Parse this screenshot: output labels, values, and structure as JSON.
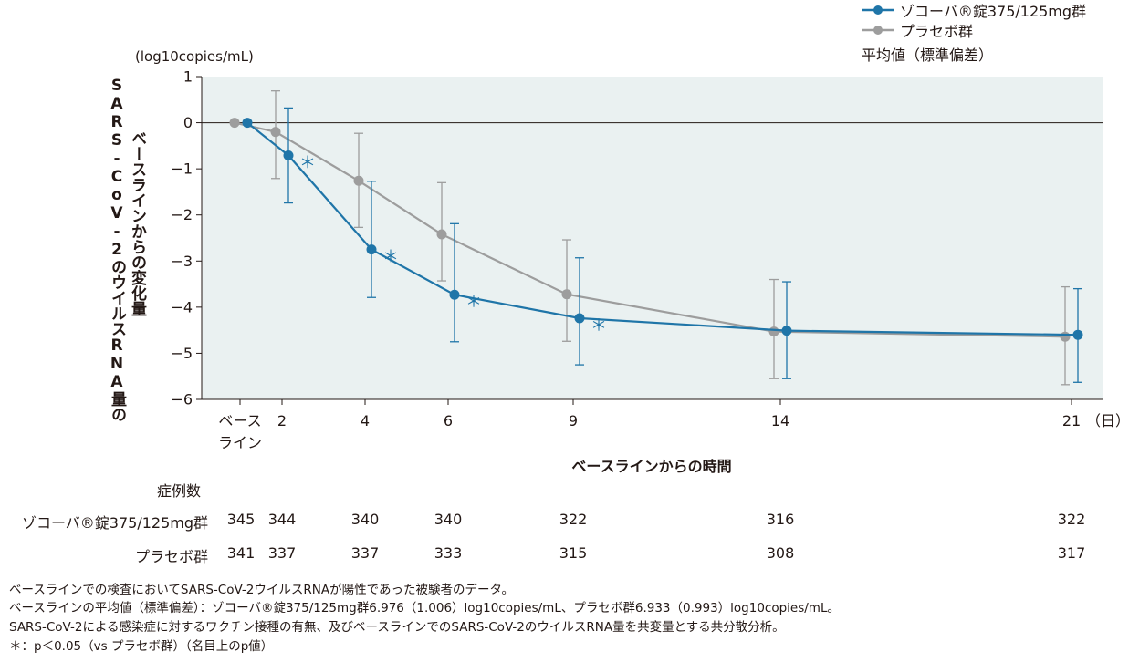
{
  "legend": {
    "series_1": "ゾコーバ®錠375/125mg群",
    "series_2": "プラセボ群",
    "statistic": "平均値（標準偏差）"
  },
  "y_axis": {
    "unit": "(log10copies/mL)",
    "title_line_1": "ベースラインからの変化量",
    "title_line_2": "SARS-CoV-2のウイルスRNA量の"
  },
  "x_axis": {
    "title": "ベースラインからの時間",
    "unit_suffix": "（日）",
    "baseline_label_1": "ベース",
    "baseline_label_2": "ライン"
  },
  "case_table": {
    "header": "症例数",
    "rows": [
      {
        "label": "ゾコーバ®錠375/125mg群",
        "values": [
          "345",
          "344",
          "340",
          "340",
          "322",
          "316",
          "322"
        ]
      },
      {
        "label": "プラセボ群",
        "values": [
          "341",
          "337",
          "337",
          "333",
          "315",
          "308",
          "317"
        ]
      }
    ]
  },
  "notes": [
    "ベースラインでの検査においてSARS-CoV-2ウイルスRNAが陽性であった被験者のデータ。",
    "ベースラインの平均値（標準偏差）：ゾコーバ®錠375/125mg群6.976（1.006）log10copies/mL、プラセボ群6.933（0.993）log10copies/mL。",
    "SARS-CoV-2による感染症に対するワクチン接種の有無、及びベースラインでのSARS-CoV-2のウイルスRNA量を共変量とする共分散分析。",
    "＊：p＜0.05（vs プラセボ群）（名目上のp値）"
  ],
  "significance_marker": "＊",
  "chart_data": {
    "type": "line",
    "x": [
      0,
      2,
      4,
      6,
      9,
      14,
      21
    ],
    "x_tick_labels": [
      "ベースライン",
      "2",
      "4",
      "6",
      "9",
      "14",
      "21"
    ],
    "ylim": [
      -6,
      1
    ],
    "y_ticks": [
      1,
      0,
      -1,
      -2,
      -3,
      -4,
      -5,
      -6
    ],
    "grid": false,
    "zero_line": true,
    "legend_position": "top-right",
    "series": [
      {
        "name": "ゾコーバ®錠375/125mg群",
        "color": "#1f75a8",
        "mean": [
          0,
          -0.71,
          -2.75,
          -3.73,
          -4.24,
          -4.51,
          -4.6
        ],
        "sd_upper": [
          0,
          0.32,
          -1.27,
          -2.19,
          -2.93,
          -3.45,
          -3.6
        ],
        "sd_lower": [
          0,
          -1.74,
          -3.79,
          -4.75,
          -5.25,
          -5.55,
          -5.63
        ],
        "significant": [
          false,
          true,
          true,
          true,
          true,
          false,
          false
        ]
      },
      {
        "name": "プラセボ群",
        "color": "#9d9d9d",
        "mean": [
          0,
          -0.2,
          -1.26,
          -2.42,
          -3.72,
          -4.53,
          -4.64
        ],
        "sd_upper": [
          0,
          0.69,
          -0.23,
          -1.3,
          -2.54,
          -3.4,
          -3.56
        ],
        "sd_lower": [
          0,
          -1.21,
          -2.27,
          -3.43,
          -4.74,
          -5.55,
          -5.68
        ],
        "significant": [
          false,
          false,
          false,
          false,
          false,
          false,
          false
        ]
      }
    ]
  }
}
